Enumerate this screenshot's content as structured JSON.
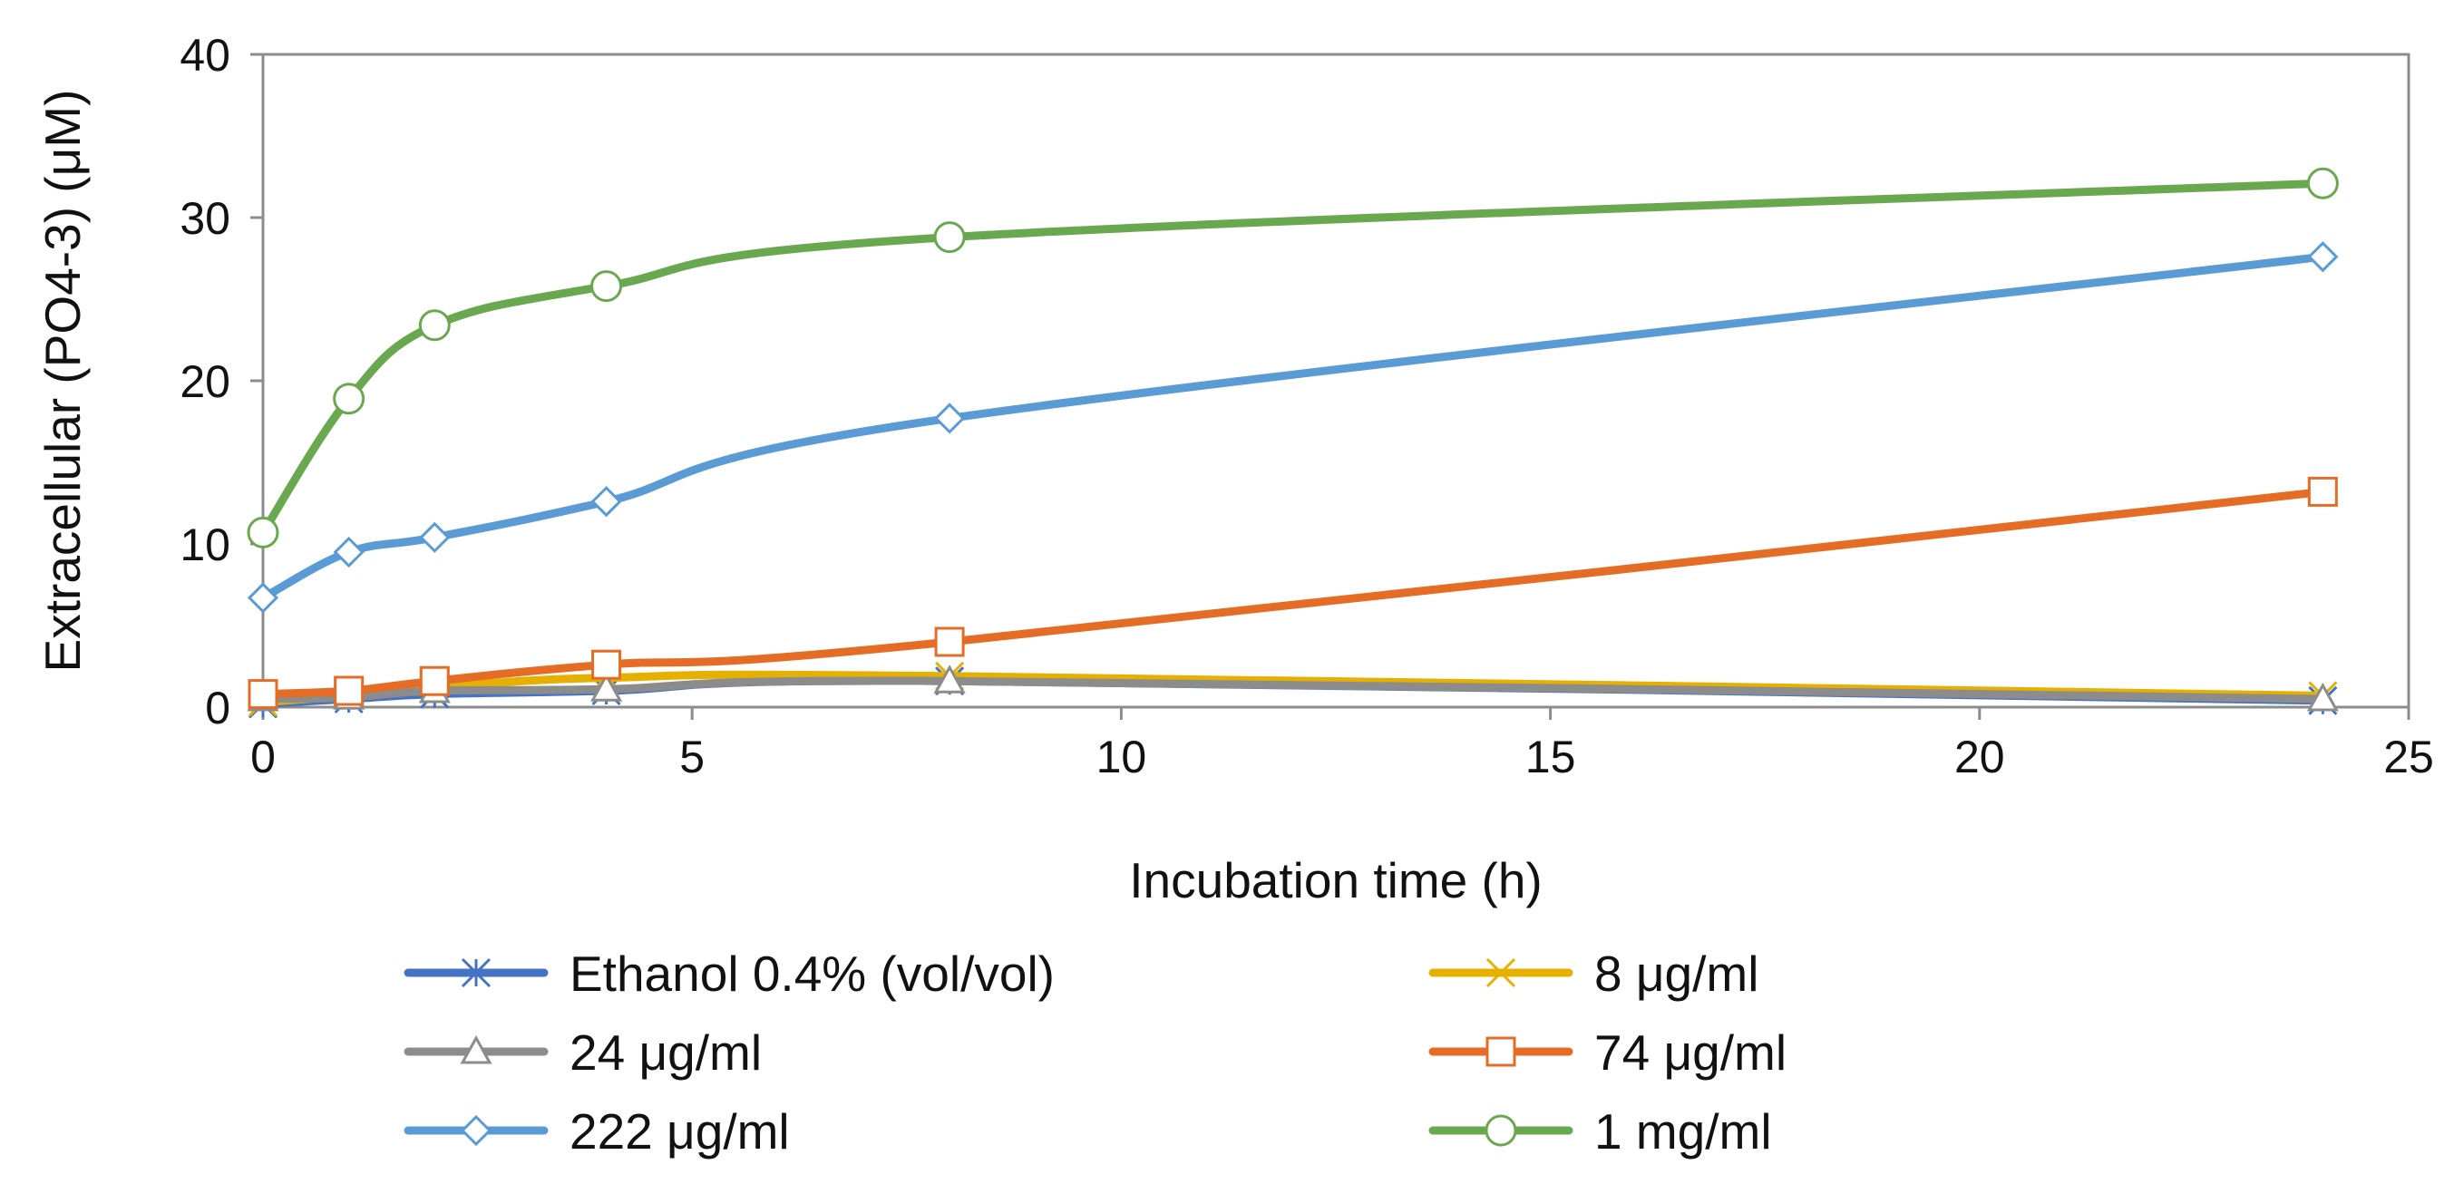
{
  "chart_data": {
    "type": "line",
    "title": "",
    "xlabel": "Incubation time (h)",
    "ylabel": "Extracellular (PO4-3) (μM)",
    "xlim": [
      0,
      25
    ],
    "ylim": [
      0,
      40
    ],
    "x_ticks": [
      0,
      5,
      10,
      15,
      20,
      25
    ],
    "y_ticks": [
      0,
      10,
      20,
      30,
      40
    ],
    "x_tick_labels": [
      "0",
      "5",
      "10",
      "15",
      "20",
      "25"
    ],
    "y_tick_labels": [
      "0",
      "10",
      "20",
      "30",
      "40"
    ],
    "grid": false,
    "legend_position": "bottom",
    "x": [
      0,
      1,
      2,
      4,
      8,
      24
    ],
    "series": [
      {
        "name": "Ethanol 0.4% (vol/vol)",
        "color": "#4472C4",
        "marker": "asterisk",
        "values": [
          0.2,
          0.5,
          0.8,
          1.0,
          1.6,
          0.4
        ]
      },
      {
        "name": "8 μg/ml",
        "color": "#E6B000",
        "marker": "x",
        "values": [
          0.3,
          0.7,
          1.2,
          1.8,
          1.9,
          0.7
        ]
      },
      {
        "name": "24 μg/ml",
        "color": "#8C8C8C",
        "marker": "triangle",
        "values": [
          0.5,
          0.6,
          1.0,
          1.1,
          1.6,
          0.5
        ]
      },
      {
        "name": "74 μg/ml",
        "color": "#E46C24",
        "marker": "square",
        "values": [
          0.8,
          1.0,
          1.6,
          2.6,
          4.0,
          13.2
        ]
      },
      {
        "name": "222 μg/ml",
        "color": "#5B9BD5",
        "marker": "diamond",
        "values": [
          6.7,
          9.5,
          10.4,
          12.6,
          17.7,
          27.6
        ]
      },
      {
        "name": "1 mg/ml",
        "color": "#6AA84F",
        "marker": "circle",
        "values": [
          10.7,
          18.9,
          23.4,
          25.8,
          28.8,
          32.1
        ]
      }
    ]
  }
}
